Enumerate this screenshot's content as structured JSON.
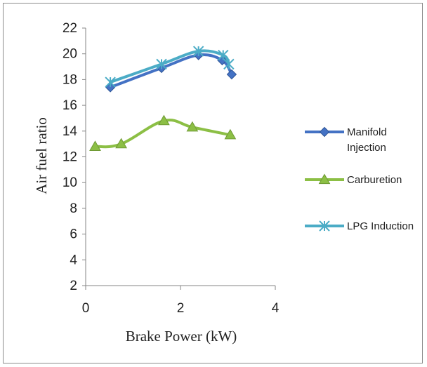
{
  "chart_data": {
    "type": "line",
    "xlabel": "Brake Power (kW)",
    "ylabel": "Air fuel ratio",
    "xlim": [
      0,
      4
    ],
    "ylim": [
      2,
      22
    ],
    "xticks": [
      0,
      2,
      4
    ],
    "yticks": [
      2,
      4,
      6,
      8,
      10,
      12,
      14,
      16,
      18,
      20,
      22
    ],
    "grid": false,
    "legend_position": "right",
    "series": [
      {
        "name": "Manifold Injection",
        "legend_lines": [
          "Manifold",
          "Injection"
        ],
        "color": "#4472c4",
        "marker": "diamond",
        "x": [
          0.52,
          1.6,
          2.38,
          2.88,
          3.08
        ],
        "y": [
          17.4,
          18.9,
          19.9,
          19.5,
          18.4
        ]
      },
      {
        "name": "Carburetion",
        "legend_lines": [
          "Carburetion"
        ],
        "color": "#8cbf45",
        "marker": "triangle",
        "x": [
          0.2,
          0.75,
          1.65,
          2.25,
          3.05
        ],
        "y": [
          12.8,
          13.0,
          14.8,
          14.3,
          13.7
        ]
      },
      {
        "name": "LPG Induction",
        "legend_lines": [
          "LPG Induction"
        ],
        "color": "#4bacc6",
        "marker": "star",
        "x": [
          0.52,
          1.6,
          2.38,
          2.9,
          3.02
        ],
        "y": [
          17.8,
          19.2,
          20.2,
          19.9,
          19.2
        ]
      }
    ]
  }
}
